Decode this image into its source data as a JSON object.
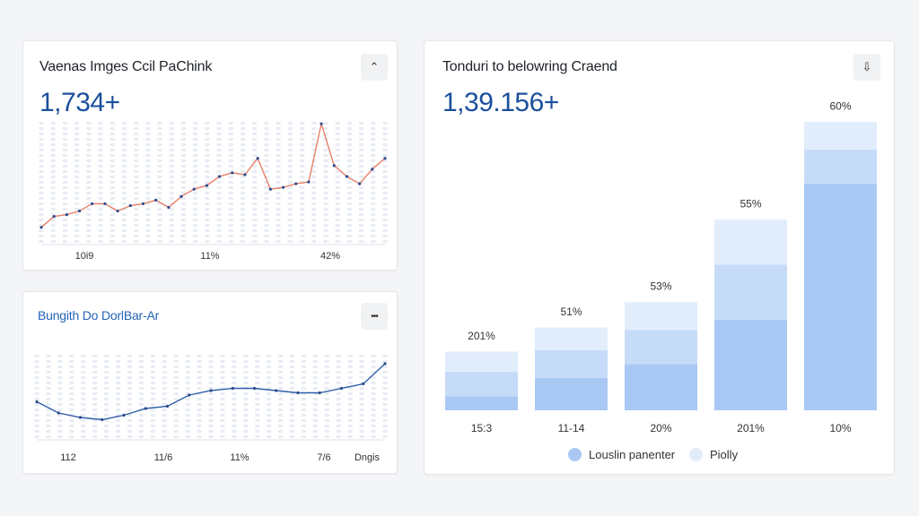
{
  "colors": {
    "accent": "#1b4f9c",
    "line_red": "#e8806a",
    "line_blue": "#2f5ea8",
    "bar_dark": "#a9c8f4",
    "bar_mid": "#c6dbf8",
    "bar_light": "#e2edfc",
    "faint_column": "#e8ecf3"
  },
  "card1": {
    "title": "Vaenas Imges Ccil PaChink",
    "value": "1,734+",
    "menu_icon": "caret-icon",
    "menu_glyph": "⌃",
    "chart_data": {
      "type": "line",
      "title": "Vaenas Imges Ccil PaChink",
      "x_labels": [
        "10i9",
        "11%",
        "42%"
      ],
      "values": [
        14,
        26,
        28,
        32,
        40,
        40,
        32,
        38,
        40,
        44,
        36,
        48,
        56,
        60,
        70,
        74,
        72,
        90,
        56,
        58,
        62,
        64,
        128,
        82,
        70,
        62,
        78,
        90
      ],
      "ylim": [
        0,
        140
      ],
      "color": "#e8806a"
    }
  },
  "card2": {
    "title": "Bungith Do DorlBar-Ar",
    "menu_icon": "more-icon",
    "menu_glyph": "•••",
    "chart_data": {
      "type": "line",
      "title": "Bungith Do DorlBar-Ar",
      "x_labels": [
        "112",
        "11/6",
        "11%",
        "7/6",
        "Dngis"
      ],
      "values": [
        30,
        20,
        16,
        14,
        18,
        24,
        26,
        36,
        40,
        42,
        42,
        40,
        38,
        38,
        42,
        46,
        64
      ],
      "ylim": [
        0,
        80
      ],
      "color": "#2f5ea8"
    }
  },
  "card3": {
    "title": "Tonduri to belowring Craend",
    "value": "1,39.156+",
    "menu_icon": "download-icon",
    "menu_glyph": "⇩",
    "chart_data": {
      "type": "bar",
      "title": "Tonduri to belowring Craend",
      "categories": [
        "15:3",
        "11-14",
        "20%",
        "201%",
        "10%"
      ],
      "top_labels": [
        "201%",
        "51%",
        "53%",
        "55%",
        "60%"
      ],
      "series": [
        {
          "name": "Louslin panenter",
          "values": [
            14,
            32,
            46,
            90,
            225
          ]
        },
        {
          "name": "Piolly",
          "values": [
            44,
            50,
            61,
            99,
            61
          ]
        }
      ],
      "ylim": [
        0,
        320
      ],
      "legend_position": "bottom"
    },
    "legend": [
      {
        "label": "Louslin panenter",
        "color": "#a9c8f4"
      },
      {
        "label": "Piolly",
        "color": "#e2edfc"
      }
    ]
  }
}
